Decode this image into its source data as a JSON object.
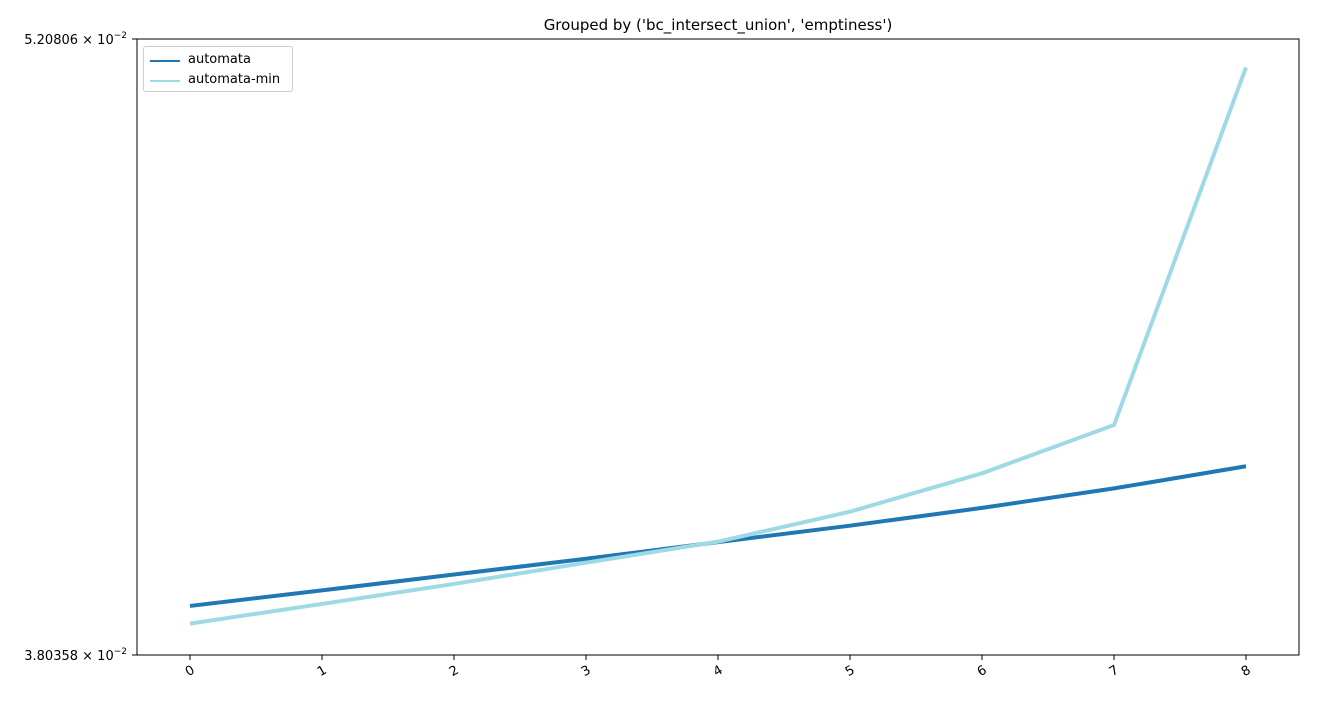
{
  "chart_data": {
    "type": "line",
    "title": "Grouped by ('bc_intersect_union', 'emptiness')",
    "xlabel": "",
    "ylabel": "",
    "x": [
      0,
      1,
      2,
      3,
      4,
      5,
      6,
      7,
      8
    ],
    "x_tick_labels": [
      "0",
      "1",
      "2",
      "3",
      "4",
      "5",
      "6",
      "7",
      "8"
    ],
    "ylim": [
      0.0380358,
      0.0520806
    ],
    "y_scale": "log",
    "y_tick_labels": {
      "bottom": {
        "mantissa": "3.80358",
        "exponent": "−2"
      },
      "top": {
        "mantissa": "5.20806",
        "exponent": "−2"
      }
    },
    "grid": false,
    "legend_position": "top-left",
    "series": [
      {
        "name": "automata",
        "color": "#1f77b4",
        "values": [
          0.039,
          0.03931,
          0.03963,
          0.03995,
          0.04029,
          0.04063,
          0.041,
          0.04141,
          0.04188
        ]
      },
      {
        "name": "automata-min",
        "color": "#9edae5",
        "values": [
          0.03865,
          0.03904,
          0.03944,
          0.03987,
          0.0403,
          0.04092,
          0.04173,
          0.04277,
          0.05133
        ]
      }
    ]
  }
}
